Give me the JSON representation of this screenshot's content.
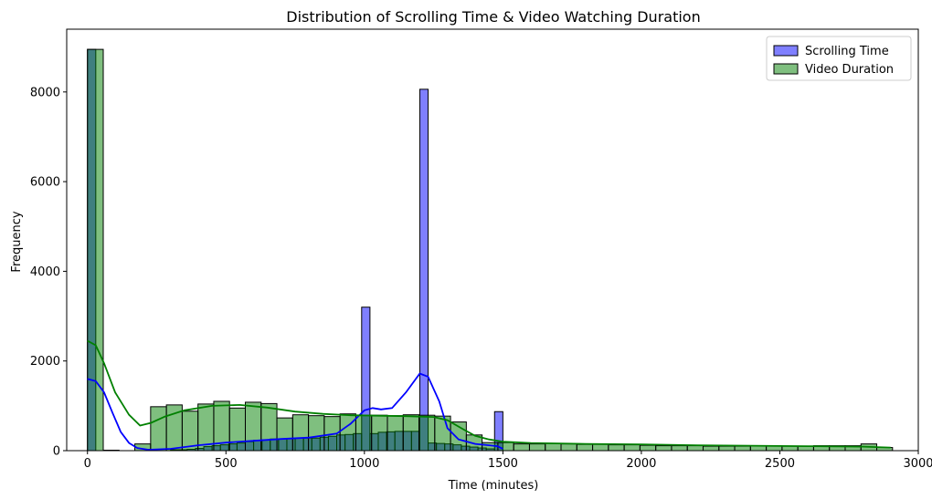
{
  "chart_data": {
    "type": "bar",
    "subtype": "overlaid histogram with kde",
    "title": "Distribution of Scrolling Time & Video Watching Duration",
    "xlabel": "Time (minutes)",
    "ylabel": "Frequency",
    "xlim": [
      -75,
      3000
    ],
    "ylim": [
      0,
      9400
    ],
    "xticks": [
      0,
      500,
      1000,
      1500,
      2000,
      2500,
      3000
    ],
    "yticks": [
      0,
      2000,
      4000,
      6000,
      8000
    ],
    "grid": false,
    "legend_position": "top-right",
    "series": [
      {
        "name": "Scrolling Time",
        "color": "#0000ff",
        "fill_color": "#8080ff",
        "bin_width": 30,
        "bins": [
          [
            0,
            8950
          ],
          [
            300,
            20
          ],
          [
            330,
            20
          ],
          [
            360,
            30
          ],
          [
            390,
            50
          ],
          [
            420,
            90
          ],
          [
            450,
            110
          ],
          [
            480,
            130
          ],
          [
            510,
            150
          ],
          [
            540,
            170
          ],
          [
            570,
            200
          ],
          [
            600,
            230
          ],
          [
            630,
            240
          ],
          [
            660,
            260
          ],
          [
            690,
            260
          ],
          [
            720,
            270
          ],
          [
            750,
            280
          ],
          [
            780,
            280
          ],
          [
            810,
            280
          ],
          [
            840,
            300
          ],
          [
            870,
            320
          ],
          [
            900,
            350
          ],
          [
            930,
            360
          ],
          [
            960,
            380
          ],
          [
            990,
            3200
          ],
          [
            1020,
            380
          ],
          [
            1050,
            410
          ],
          [
            1080,
            420
          ],
          [
            1110,
            430
          ],
          [
            1140,
            430
          ],
          [
            1170,
            430
          ],
          [
            1200,
            8060
          ],
          [
            1230,
            170
          ],
          [
            1260,
            160
          ],
          [
            1290,
            150
          ],
          [
            1320,
            130
          ],
          [
            1350,
            100
          ],
          [
            1380,
            80
          ],
          [
            1410,
            60
          ],
          [
            1440,
            40
          ],
          [
            1470,
            870
          ]
        ],
        "kde": [
          [
            0,
            1600
          ],
          [
            30,
            1550
          ],
          [
            60,
            1300
          ],
          [
            90,
            850
          ],
          [
            120,
            420
          ],
          [
            150,
            170
          ],
          [
            180,
            60
          ],
          [
            220,
            20
          ],
          [
            300,
            40
          ],
          [
            400,
            120
          ],
          [
            500,
            180
          ],
          [
            600,
            220
          ],
          [
            700,
            260
          ],
          [
            800,
            290
          ],
          [
            900,
            380
          ],
          [
            950,
            600
          ],
          [
            1000,
            900
          ],
          [
            1030,
            950
          ],
          [
            1060,
            920
          ],
          [
            1100,
            950
          ],
          [
            1150,
            1300
          ],
          [
            1200,
            1720
          ],
          [
            1230,
            1650
          ],
          [
            1270,
            1100
          ],
          [
            1300,
            500
          ],
          [
            1340,
            250
          ],
          [
            1400,
            150
          ],
          [
            1450,
            120
          ],
          [
            1480,
            100
          ],
          [
            1500,
            40
          ]
        ]
      },
      {
        "name": "Video Duration",
        "color": "#008000",
        "fill_color": "#80c080",
        "bin_width": 57,
        "bins": [
          [
            0,
            8950
          ],
          [
            57,
            10
          ],
          [
            171,
            150
          ],
          [
            228,
            980
          ],
          [
            285,
            1020
          ],
          [
            342,
            880
          ],
          [
            399,
            1040
          ],
          [
            456,
            1100
          ],
          [
            513,
            950
          ],
          [
            570,
            1080
          ],
          [
            627,
            1050
          ],
          [
            684,
            730
          ],
          [
            741,
            800
          ],
          [
            798,
            780
          ],
          [
            855,
            760
          ],
          [
            912,
            820
          ],
          [
            969,
            790
          ],
          [
            1026,
            790
          ],
          [
            1083,
            780
          ],
          [
            1140,
            800
          ],
          [
            1197,
            790
          ],
          [
            1254,
            770
          ],
          [
            1311,
            640
          ],
          [
            1368,
            350
          ],
          [
            1425,
            180
          ],
          [
            1482,
            180
          ],
          [
            1539,
            150
          ],
          [
            1596,
            150
          ],
          [
            1653,
            160
          ],
          [
            1710,
            150
          ],
          [
            1767,
            140
          ],
          [
            1824,
            140
          ],
          [
            1881,
            130
          ],
          [
            1938,
            130
          ],
          [
            1995,
            120
          ],
          [
            2052,
            110
          ],
          [
            2109,
            110
          ],
          [
            2166,
            110
          ],
          [
            2223,
            100
          ],
          [
            2280,
            100
          ],
          [
            2337,
            100
          ],
          [
            2394,
            110
          ],
          [
            2451,
            110
          ],
          [
            2508,
            100
          ],
          [
            2565,
            100
          ],
          [
            2622,
            110
          ],
          [
            2679,
            110
          ],
          [
            2736,
            110
          ],
          [
            2793,
            150
          ],
          [
            2850,
            70
          ]
        ],
        "kde": [
          [
            0,
            2450
          ],
          [
            30,
            2350
          ],
          [
            60,
            1950
          ],
          [
            100,
            1300
          ],
          [
            150,
            800
          ],
          [
            190,
            560
          ],
          [
            230,
            620
          ],
          [
            280,
            760
          ],
          [
            350,
            900
          ],
          [
            450,
            1000
          ],
          [
            550,
            1020
          ],
          [
            650,
            960
          ],
          [
            750,
            870
          ],
          [
            850,
            820
          ],
          [
            950,
            790
          ],
          [
            1050,
            780
          ],
          [
            1150,
            770
          ],
          [
            1250,
            750
          ],
          [
            1300,
            680
          ],
          [
            1350,
            500
          ],
          [
            1400,
            330
          ],
          [
            1450,
            250
          ],
          [
            1500,
            200
          ],
          [
            1600,
            170
          ],
          [
            1800,
            150
          ],
          [
            2000,
            140
          ],
          [
            2200,
            120
          ],
          [
            2400,
            110
          ],
          [
            2600,
            100
          ],
          [
            2800,
            90
          ],
          [
            2900,
            70
          ]
        ]
      }
    ]
  }
}
